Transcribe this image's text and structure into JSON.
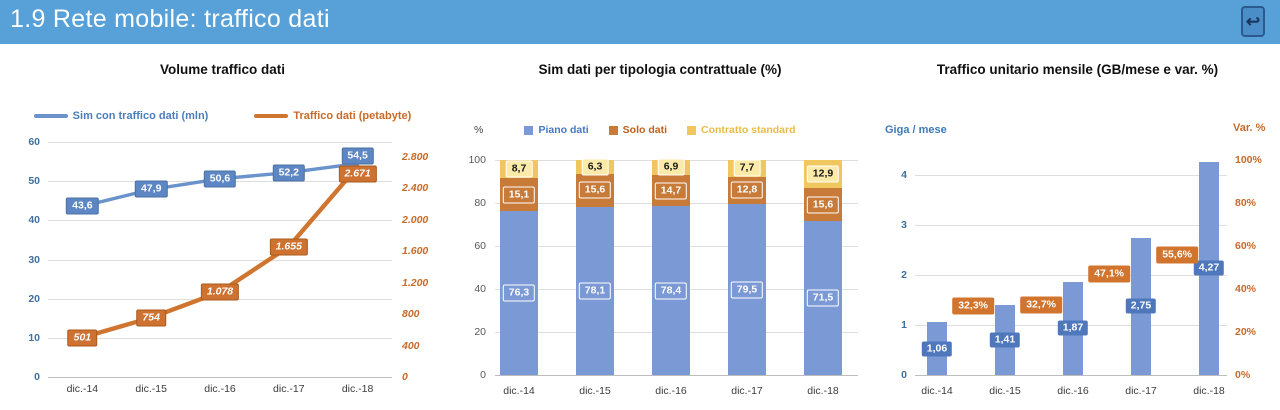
{
  "header": {
    "title": "1.9 Rete mobile: traffico dati",
    "return_icon": "return-arrow",
    "return_glyph": "↩",
    "bar_color": "#57a0d8"
  },
  "chart_data": [
    {
      "type": "line",
      "title": "Volume traffico dati",
      "categories": [
        "dic.-14",
        "dic.-15",
        "dic.-16",
        "dic.-17",
        "dic.-18"
      ],
      "series": [
        {
          "name": "Sim con traffico dati (mln)",
          "axis": "left",
          "color": "#6a93cc",
          "label_fill": "#5d87c4",
          "label_border": "#49719f",
          "label_text_color": "#ffffff",
          "legend_text_color": "#4a7ebb",
          "values": [
            43.6,
            47.9,
            50.6,
            52.2,
            54.5
          ],
          "labels": [
            "43,6",
            "47,9",
            "50,6",
            "52,2",
            "54,5"
          ]
        },
        {
          "name": "Traffico dati (petabyte)",
          "axis": "right",
          "color": "#d0752f",
          "label_fill": "#ce7231",
          "label_border": "#a95a1d",
          "label_text_color": "#ffffff",
          "legend_text_color": "#c96a28",
          "values": [
            501,
            754,
            1078,
            1655,
            2671
          ],
          "labels": [
            "501",
            "754",
            "1.078",
            "1.655",
            "2.671"
          ]
        }
      ],
      "left_axis": {
        "min": 0,
        "max": 60,
        "step": 10,
        "ticks": [
          "0",
          "10",
          "20",
          "30",
          "40",
          "50",
          "60"
        ],
        "color": "#41719c"
      },
      "right_axis": {
        "min": 0,
        "max": 2800,
        "step": 400,
        "ticks": [
          "0",
          "400",
          "800",
          "1.200",
          "1.600",
          "2.000",
          "2.400",
          "2.800"
        ],
        "color": "#c96a28"
      },
      "grid": true,
      "legend_position": "top"
    },
    {
      "type": "stacked-bar",
      "title": "Sim dati per tipologia contrattuale (%)",
      "categories": [
        "dic.-14",
        "dic.-15",
        "dic.-16",
        "dic.-17",
        "dic.-18"
      ],
      "series": [
        {
          "name": "Piano dati",
          "color": "#7b99d4",
          "label_fill": "#7b99d4",
          "label_text_color": "#ffffff",
          "legend_text_color": "#4777c0",
          "values": [
            76.3,
            78.1,
            78.4,
            79.5,
            71.5
          ],
          "labels": [
            "76,3",
            "78,1",
            "78,4",
            "79,5",
            "71,5"
          ]
        },
        {
          "name": "Solo dati",
          "color": "#c87a38",
          "label_fill": "#c87a38",
          "label_text_color": "#ffffff",
          "legend_text_color": "#bd5f1e",
          "values": [
            15.1,
            15.6,
            14.7,
            12.8,
            15.6
          ],
          "labels": [
            "15,1",
            "15,6",
            "14,7",
            "12,8",
            "15,6"
          ]
        },
        {
          "name": "Contratto standard",
          "color": "#f0c75e",
          "label_fill": "#fceaa9",
          "label_text_color": "#1a1a1a",
          "legend_text_color": "#e9bc45",
          "values": [
            8.7,
            6.3,
            6.9,
            7.7,
            12.9
          ],
          "labels": [
            "8,7",
            "6,3",
            "6,9",
            "7,7",
            "12,9"
          ]
        }
      ],
      "left_axis": {
        "title": "%",
        "min": 0,
        "max": 100,
        "step": 20,
        "ticks": [
          "0",
          "20",
          "40",
          "60",
          "80",
          "100"
        ],
        "color": "#595959"
      },
      "grid": true,
      "legend_position": "top"
    },
    {
      "type": "bar",
      "title": "Traffico unitario mensile (GB/mese e var. %)",
      "categories": [
        "dic.-14",
        "dic.-15",
        "dic.-16",
        "dic.-17",
        "dic.-18"
      ],
      "bars": {
        "name": "Traffico unitario (GB/mese)",
        "color": "#7b99d4",
        "label_fill": "#4f78bc",
        "label_text_color": "#ffffff",
        "values": [
          1.06,
          1.41,
          1.87,
          2.75,
          4.27
        ],
        "labels": [
          "1,06",
          "1,41",
          "1,87",
          "2,75",
          "4,27"
        ]
      },
      "variation": {
        "name": "Var. %",
        "color": "#d0742e",
        "label_text_color": "#ffffff",
        "start_index": 1,
        "values": [
          32.3,
          32.7,
          47.1,
          55.6
        ],
        "labels": [
          "32,3%",
          "32,7%",
          "47,1%",
          "55,6%"
        ]
      },
      "left_axis": {
        "title": "Giga / mese",
        "min": 0,
        "max": 4,
        "step": 1,
        "ticks": [
          "0",
          "1",
          "2",
          "3",
          "4"
        ],
        "color": "#41719c"
      },
      "right_axis": {
        "title": "Var. %",
        "min": 0,
        "max": 100,
        "step": 20,
        "ticks": [
          "0%",
          "20%",
          "40%",
          "60%",
          "80%",
          "100%"
        ],
        "color": "#c96a28"
      },
      "grid": true
    }
  ]
}
